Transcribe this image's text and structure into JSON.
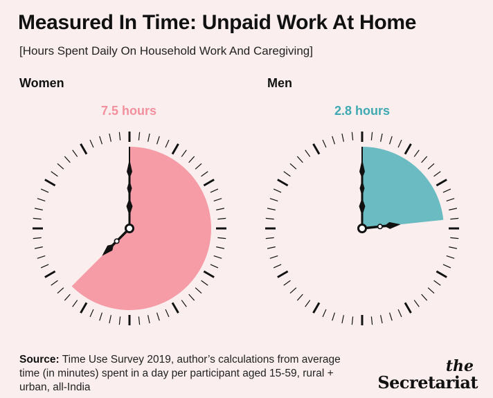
{
  "title": "Measured In Time: Unpaid Work At Home",
  "subtitle": "[Hours Spent Daily On Household Work And Caregiving]",
  "colors": {
    "background": "#faeeee",
    "women": "#f59ca7",
    "women_text": "#f4909d",
    "men": "#6bbcc2",
    "men_text": "#3fa9b1",
    "ink": "#111111"
  },
  "chart_data": [
    {
      "type": "clock",
      "series_name": "Women",
      "value": 7.5,
      "unit": "hours",
      "value_label": "7.5 hours",
      "scale_max": 12
    },
    {
      "type": "clock",
      "series_name": "Men",
      "value": 2.8,
      "unit": "hours",
      "value_label": "2.8 hours",
      "scale_max": 12
    }
  ],
  "footer": {
    "source_label": "Source:",
    "source_text": "Time Use Survey 2019, author’s calculations from average time (in minutes) spent in a day per participant aged 15-59, rural + urban, all-India",
    "logo_the": "the",
    "logo_name": "Secretariat"
  }
}
